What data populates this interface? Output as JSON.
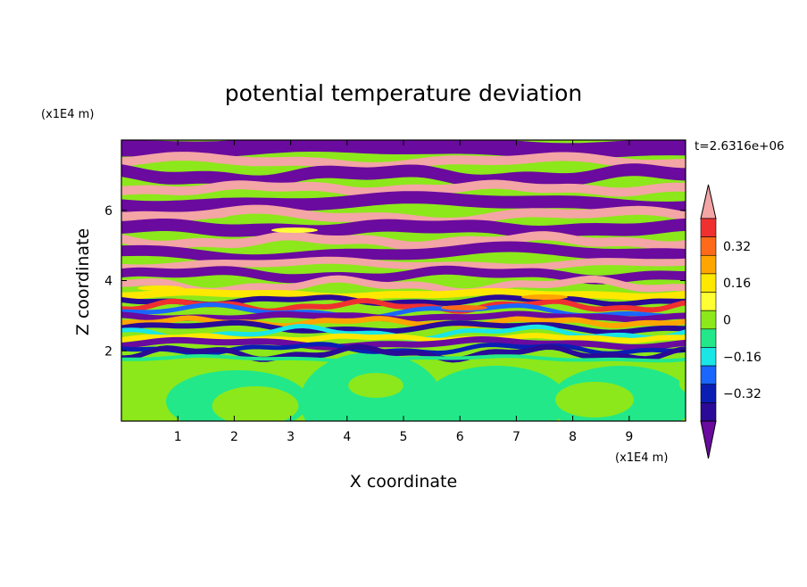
{
  "chart_data": {
    "type": "heatmap",
    "title": "potential temperature deviation",
    "xlabel": "X coordinate",
    "ylabel": "Z coordinate",
    "x_unit": "(x1E4 m)",
    "z_unit": "(x1E4 m)",
    "time_label": "t=2.6316e+06",
    "xlim": [
      0,
      10
    ],
    "zlim": [
      0,
      8
    ],
    "x_ticks": [
      "1",
      "2",
      "3",
      "4",
      "5",
      "6",
      "7",
      "8",
      "9"
    ],
    "z_ticks": [
      "2",
      "4",
      "6"
    ],
    "colorbar": {
      "tick_labels": [
        "0.32",
        "0.16",
        "0",
        "−0.16",
        "−0.32"
      ],
      "tick_values": [
        0.32,
        0.16,
        0,
        -0.16,
        -0.32
      ],
      "levels": [
        {
          "lo": 0.4,
          "hi": null,
          "color": "#f4a5a5"
        },
        {
          "lo": 0.36,
          "hi": 0.4,
          "color": "#f03030"
        },
        {
          "lo": 0.32,
          "hi": 0.36,
          "color": "#ff6a1a"
        },
        {
          "lo": 0.24,
          "hi": 0.32,
          "color": "#ffa500"
        },
        {
          "lo": 0.16,
          "hi": 0.24,
          "color": "#ffe800"
        },
        {
          "lo": 0.08,
          "hi": 0.16,
          "color": "#ffff33"
        },
        {
          "lo": 0.0,
          "hi": 0.08,
          "color": "#8ce81a"
        },
        {
          "lo": -0.08,
          "hi": 0.0,
          "color": "#22e88a"
        },
        {
          "lo": -0.16,
          "hi": -0.08,
          "color": "#1ae6e6"
        },
        {
          "lo": -0.24,
          "hi": -0.16,
          "color": "#1a66ff"
        },
        {
          "lo": -0.32,
          "hi": -0.24,
          "color": "#0a1eb4"
        },
        {
          "lo": -0.4,
          "hi": -0.32,
          "color": "#2a0a96"
        },
        {
          "lo": null,
          "hi": -0.4,
          "color": "#6a0a9e"
        }
      ]
    }
  }
}
